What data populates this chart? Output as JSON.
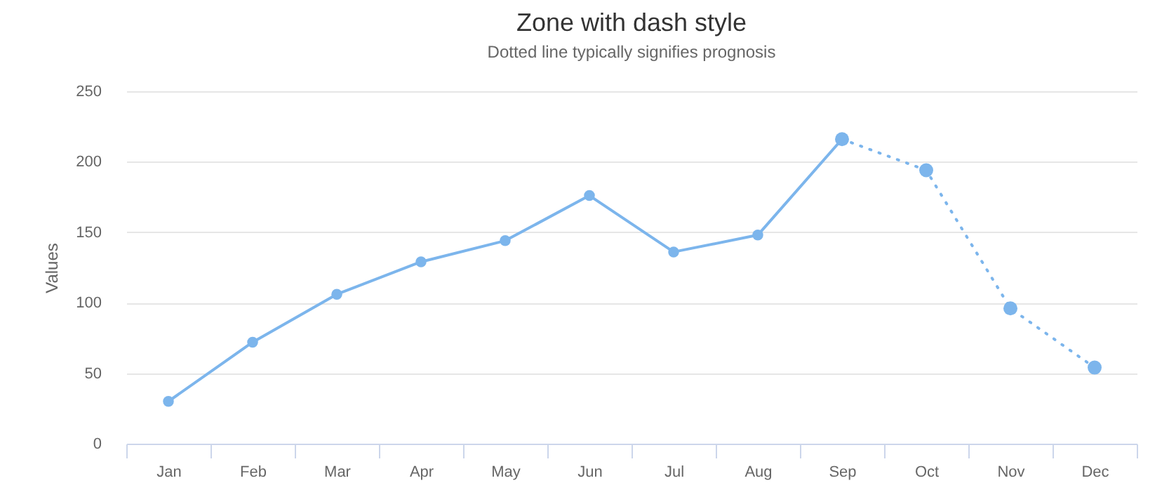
{
  "chart_data": {
    "type": "line",
    "title": "Zone with dash style",
    "subtitle": "Dotted line typically signifies prognosis",
    "ylabel": "Values",
    "categories": [
      "Jan",
      "Feb",
      "Mar",
      "Apr",
      "May",
      "Jun",
      "Jul",
      "Aug",
      "Sep",
      "Oct",
      "Nov",
      "Dec"
    ],
    "series": [
      {
        "color": "#7cb5ec",
        "line_style": "solid",
        "values": [
          30,
          72,
          106,
          129,
          144,
          176,
          136,
          148,
          216,
          null,
          null,
          null
        ]
      },
      {
        "color": "#7cb5ec",
        "line_style": "dotted",
        "values": [
          null,
          null,
          null,
          null,
          null,
          null,
          null,
          null,
          216,
          194,
          96,
          54
        ]
      }
    ],
    "ylim": [
      0,
      250
    ],
    "yticks": [
      0,
      50,
      100,
      150,
      200,
      250
    ],
    "grid": "y",
    "marker": "circle",
    "legend": false
  }
}
